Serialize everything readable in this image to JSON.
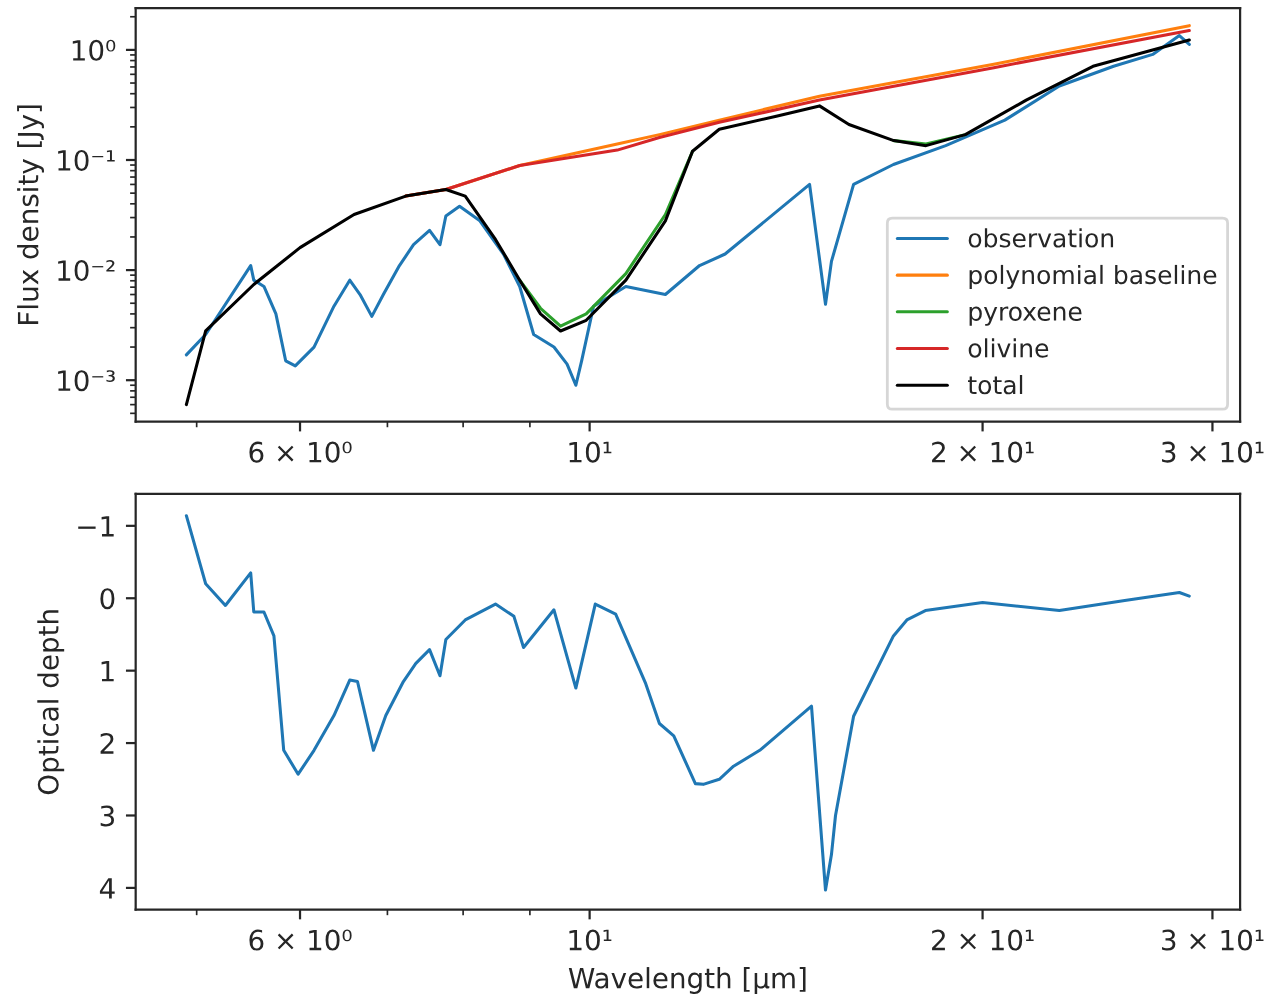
{
  "chart_data": [
    {
      "type": "line",
      "ylabel": "Flux density [Jy]",
      "log": "xy",
      "legend": "bottom right",
      "grid": false,
      "xlim": [
        4.49,
        31.5
      ],
      "ylim": [
        0.00042,
        2.4
      ],
      "xticks": [
        {
          "value": 6,
          "label": "6 × 10⁰"
        },
        {
          "value": 10,
          "label": "10¹"
        },
        {
          "value": 20,
          "label": "2 × 10¹"
        },
        {
          "value": 30,
          "label": "3 × 10¹"
        }
      ],
      "yticks": [
        {
          "value": 0.001,
          "label": "10⁻³"
        },
        {
          "value": 0.01,
          "label": "10⁻²"
        },
        {
          "value": 0.1,
          "label": "10⁻¹"
        },
        {
          "value": 1,
          "label": "10⁰"
        }
      ],
      "series": [
        {
          "name": "observation",
          "color": "#1f77b4",
          "x": [
            4.91,
            5.08,
            5.5,
            5.53,
            5.63,
            5.75,
            5.85,
            5.95,
            6.15,
            6.37,
            6.55,
            6.67,
            6.81,
            6.95,
            7.15,
            7.33,
            7.54,
            7.68,
            7.76,
            7.95,
            8.24,
            8.59,
            8.84,
            9.06,
            9.39,
            9.61,
            9.76,
            9.86,
            10.07,
            10.66,
            11.43,
            12.14,
            12.7,
            14.74,
            15.16,
            15.32,
            15.93,
            17.09,
            18.74,
            20.8,
            22.9,
            25.2,
            27.0,
            28.3,
            28.8
          ],
          "values": [
            0.0017,
            0.0026,
            0.011,
            0.0081,
            0.0071,
            0.004,
            0.0015,
            0.00135,
            0.002,
            0.0047,
            0.0081,
            0.006,
            0.0038,
            0.006,
            0.011,
            0.017,
            0.023,
            0.017,
            0.031,
            0.038,
            0.028,
            0.014,
            0.0071,
            0.0026,
            0.002,
            0.0014,
            0.0009,
            0.0015,
            0.0047,
            0.0071,
            0.006,
            0.011,
            0.014,
            0.06,
            0.0049,
            0.012,
            0.06,
            0.091,
            0.135,
            0.23,
            0.47,
            0.71,
            0.91,
            1.35,
            1.12
          ]
        },
        {
          "name": "polynomial baseline",
          "color": "#ff7f0e",
          "x": [
            7.23,
            7.76,
            8.84,
            10.5,
            11.31,
            12.57,
            15.0,
            20.4,
            28.8
          ],
          "values": [
            0.047,
            0.054,
            0.089,
            0.14,
            0.17,
            0.23,
            0.38,
            0.74,
            1.66
          ]
        },
        {
          "name": "pyroxene",
          "color": "#2ca02c",
          "x": [
            8.84,
            9.17,
            9.5,
            9.94,
            10.66,
            11.43,
            11.99,
            15.0,
            17.1,
            18.1,
            19.4
          ],
          "values": [
            0.0081,
            0.0045,
            0.0031,
            0.004,
            0.0093,
            0.032,
            0.12,
            null,
            0.15,
            0.14,
            0.17
          ]
        },
        {
          "name": "olivine",
          "color": "#d62728",
          "x": [
            7.23,
            7.76,
            8.84,
            10.5,
            11.31,
            12.57,
            15.0,
            20.4,
            28.8
          ],
          "values": [
            0.047,
            0.054,
            0.089,
            0.123,
            0.16,
            0.22,
            0.35,
            0.69,
            1.5
          ]
        },
        {
          "name": "total",
          "color": "#000000",
          "x": [
            4.91,
            5.08,
            5.53,
            6.0,
            6.6,
            7.23,
            7.76,
            8.03,
            8.47,
            8.84,
            9.17,
            9.5,
            9.94,
            10.66,
            11.43,
            11.99,
            12.57,
            13.9,
            15.0,
            15.8,
            17.1,
            18.1,
            19.4,
            21.6,
            24.3,
            28.8
          ],
          "values": [
            0.0006,
            0.0028,
            0.0074,
            0.016,
            0.032,
            0.047,
            0.054,
            0.047,
            0.019,
            0.0081,
            0.004,
            0.0028,
            0.0035,
            0.0081,
            0.028,
            0.12,
            0.19,
            0.25,
            0.31,
            0.21,
            0.15,
            0.135,
            0.17,
            0.35,
            0.71,
            1.23
          ]
        }
      ]
    },
    {
      "type": "line",
      "xlabel": "Wavelength [μm]",
      "ylabel": "Optical depth",
      "log": "x",
      "grid": false,
      "xlim": [
        4.49,
        31.5
      ],
      "ylim": [
        4.3,
        -1.44
      ],
      "xticks": [
        {
          "value": 6,
          "label": "6 × 10⁰"
        },
        {
          "value": 10,
          "label": "10¹"
        },
        {
          "value": 20,
          "label": "2 × 10¹"
        },
        {
          "value": 30,
          "label": "3 × 10¹"
        }
      ],
      "yticks": [
        {
          "value": -1,
          "label": "−1"
        },
        0,
        1,
        2,
        3,
        4
      ],
      "series": [
        {
          "color": "#1f77b4",
          "x": [
            4.91,
            5.08,
            5.26,
            5.5,
            5.53,
            5.63,
            5.73,
            5.83,
            5.98,
            6.15,
            6.37,
            6.55,
            6.64,
            6.83,
            6.98,
            7.2,
            7.36,
            7.54,
            7.68,
            7.76,
            8.03,
            8.47,
            8.75,
            8.9,
            9.39,
            9.76,
            10.1,
            10.47,
            11.04,
            11.31,
            11.6,
            12.05,
            12.22,
            12.57,
            12.89,
            13.5,
            14.79,
            15.16,
            15.32,
            15.43,
            15.93,
            17.09,
            17.5,
            18.08,
            20.0,
            22.9,
            25.7,
            28.3,
            28.8
          ],
          "values": [
            -1.14,
            -0.2,
            0.1,
            -0.35,
            0.19,
            0.19,
            0.52,
            2.1,
            2.43,
            2.1,
            1.62,
            1.13,
            1.15,
            2.1,
            1.62,
            1.15,
            0.9,
            0.71,
            1.07,
            0.57,
            0.3,
            0.08,
            0.25,
            0.68,
            0.16,
            1.24,
            0.08,
            0.22,
            1.18,
            1.73,
            1.9,
            2.56,
            2.57,
            2.5,
            2.32,
            2.1,
            1.49,
            4.03,
            3.54,
            3.0,
            1.63,
            0.52,
            0.3,
            0.17,
            0.06,
            0.17,
            0.03,
            -0.08,
            -0.03
          ]
        }
      ]
    }
  ]
}
